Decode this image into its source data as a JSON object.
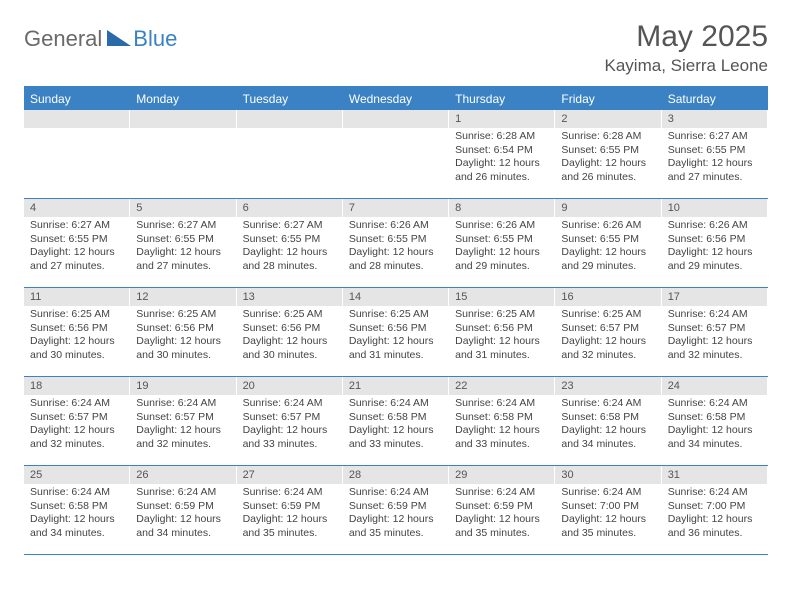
{
  "logo": {
    "general": "General",
    "blue": "Blue"
  },
  "title": "May 2025",
  "location": "Kayima, Sierra Leone",
  "colors": {
    "header_bg": "#3b82c4",
    "daynum_bg": "#e5e5e5",
    "text": "#444444",
    "title_text": "#555555"
  },
  "day_names": [
    "Sunday",
    "Monday",
    "Tuesday",
    "Wednesday",
    "Thursday",
    "Friday",
    "Saturday"
  ],
  "weeks": [
    [
      {
        "empty": true
      },
      {
        "empty": true
      },
      {
        "empty": true
      },
      {
        "empty": true
      },
      {
        "day": "1",
        "sunrise": "Sunrise: 6:28 AM",
        "sunset": "Sunset: 6:54 PM",
        "daylight": "Daylight: 12 hours and 26 minutes."
      },
      {
        "day": "2",
        "sunrise": "Sunrise: 6:28 AM",
        "sunset": "Sunset: 6:55 PM",
        "daylight": "Daylight: 12 hours and 26 minutes."
      },
      {
        "day": "3",
        "sunrise": "Sunrise: 6:27 AM",
        "sunset": "Sunset: 6:55 PM",
        "daylight": "Daylight: 12 hours and 27 minutes."
      }
    ],
    [
      {
        "day": "4",
        "sunrise": "Sunrise: 6:27 AM",
        "sunset": "Sunset: 6:55 PM",
        "daylight": "Daylight: 12 hours and 27 minutes."
      },
      {
        "day": "5",
        "sunrise": "Sunrise: 6:27 AM",
        "sunset": "Sunset: 6:55 PM",
        "daylight": "Daylight: 12 hours and 27 minutes."
      },
      {
        "day": "6",
        "sunrise": "Sunrise: 6:27 AM",
        "sunset": "Sunset: 6:55 PM",
        "daylight": "Daylight: 12 hours and 28 minutes."
      },
      {
        "day": "7",
        "sunrise": "Sunrise: 6:26 AM",
        "sunset": "Sunset: 6:55 PM",
        "daylight": "Daylight: 12 hours and 28 minutes."
      },
      {
        "day": "8",
        "sunrise": "Sunrise: 6:26 AM",
        "sunset": "Sunset: 6:55 PM",
        "daylight": "Daylight: 12 hours and 29 minutes."
      },
      {
        "day": "9",
        "sunrise": "Sunrise: 6:26 AM",
        "sunset": "Sunset: 6:55 PM",
        "daylight": "Daylight: 12 hours and 29 minutes."
      },
      {
        "day": "10",
        "sunrise": "Sunrise: 6:26 AM",
        "sunset": "Sunset: 6:56 PM",
        "daylight": "Daylight: 12 hours and 29 minutes."
      }
    ],
    [
      {
        "day": "11",
        "sunrise": "Sunrise: 6:25 AM",
        "sunset": "Sunset: 6:56 PM",
        "daylight": "Daylight: 12 hours and 30 minutes."
      },
      {
        "day": "12",
        "sunrise": "Sunrise: 6:25 AM",
        "sunset": "Sunset: 6:56 PM",
        "daylight": "Daylight: 12 hours and 30 minutes."
      },
      {
        "day": "13",
        "sunrise": "Sunrise: 6:25 AM",
        "sunset": "Sunset: 6:56 PM",
        "daylight": "Daylight: 12 hours and 30 minutes."
      },
      {
        "day": "14",
        "sunrise": "Sunrise: 6:25 AM",
        "sunset": "Sunset: 6:56 PM",
        "daylight": "Daylight: 12 hours and 31 minutes."
      },
      {
        "day": "15",
        "sunrise": "Sunrise: 6:25 AM",
        "sunset": "Sunset: 6:56 PM",
        "daylight": "Daylight: 12 hours and 31 minutes."
      },
      {
        "day": "16",
        "sunrise": "Sunrise: 6:25 AM",
        "sunset": "Sunset: 6:57 PM",
        "daylight": "Daylight: 12 hours and 32 minutes."
      },
      {
        "day": "17",
        "sunrise": "Sunrise: 6:24 AM",
        "sunset": "Sunset: 6:57 PM",
        "daylight": "Daylight: 12 hours and 32 minutes."
      }
    ],
    [
      {
        "day": "18",
        "sunrise": "Sunrise: 6:24 AM",
        "sunset": "Sunset: 6:57 PM",
        "daylight": "Daylight: 12 hours and 32 minutes."
      },
      {
        "day": "19",
        "sunrise": "Sunrise: 6:24 AM",
        "sunset": "Sunset: 6:57 PM",
        "daylight": "Daylight: 12 hours and 32 minutes."
      },
      {
        "day": "20",
        "sunrise": "Sunrise: 6:24 AM",
        "sunset": "Sunset: 6:57 PM",
        "daylight": "Daylight: 12 hours and 33 minutes."
      },
      {
        "day": "21",
        "sunrise": "Sunrise: 6:24 AM",
        "sunset": "Sunset: 6:58 PM",
        "daylight": "Daylight: 12 hours and 33 minutes."
      },
      {
        "day": "22",
        "sunrise": "Sunrise: 6:24 AM",
        "sunset": "Sunset: 6:58 PM",
        "daylight": "Daylight: 12 hours and 33 minutes."
      },
      {
        "day": "23",
        "sunrise": "Sunrise: 6:24 AM",
        "sunset": "Sunset: 6:58 PM",
        "daylight": "Daylight: 12 hours and 34 minutes."
      },
      {
        "day": "24",
        "sunrise": "Sunrise: 6:24 AM",
        "sunset": "Sunset: 6:58 PM",
        "daylight": "Daylight: 12 hours and 34 minutes."
      }
    ],
    [
      {
        "day": "25",
        "sunrise": "Sunrise: 6:24 AM",
        "sunset": "Sunset: 6:58 PM",
        "daylight": "Daylight: 12 hours and 34 minutes."
      },
      {
        "day": "26",
        "sunrise": "Sunrise: 6:24 AM",
        "sunset": "Sunset: 6:59 PM",
        "daylight": "Daylight: 12 hours and 34 minutes."
      },
      {
        "day": "27",
        "sunrise": "Sunrise: 6:24 AM",
        "sunset": "Sunset: 6:59 PM",
        "daylight": "Daylight: 12 hours and 35 minutes."
      },
      {
        "day": "28",
        "sunrise": "Sunrise: 6:24 AM",
        "sunset": "Sunset: 6:59 PM",
        "daylight": "Daylight: 12 hours and 35 minutes."
      },
      {
        "day": "29",
        "sunrise": "Sunrise: 6:24 AM",
        "sunset": "Sunset: 6:59 PM",
        "daylight": "Daylight: 12 hours and 35 minutes."
      },
      {
        "day": "30",
        "sunrise": "Sunrise: 6:24 AM",
        "sunset": "Sunset: 7:00 PM",
        "daylight": "Daylight: 12 hours and 35 minutes."
      },
      {
        "day": "31",
        "sunrise": "Sunrise: 6:24 AM",
        "sunset": "Sunset: 7:00 PM",
        "daylight": "Daylight: 12 hours and 36 minutes."
      }
    ]
  ]
}
